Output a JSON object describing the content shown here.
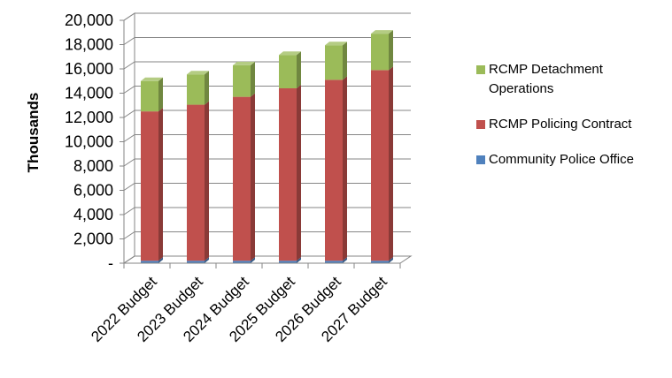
{
  "chart_data": {
    "type": "bar",
    "stacked": true,
    "three_d": true,
    "categories": [
      "2022 Budget",
      "2023 Budget",
      "2024 Budget",
      "2025 Budget",
      "2026 Budget",
      "2027 Budget"
    ],
    "series": [
      {
        "name": "Community Police Office",
        "color": "#4f81bd",
        "values": [
          200,
          200,
          200,
          200,
          200,
          200
        ]
      },
      {
        "name": "RCMP Policing Contract",
        "color": "#c0504d",
        "values": [
          12300,
          12850,
          13500,
          14200,
          14900,
          15700
        ]
      },
      {
        "name": "RCMP Detachment Operations",
        "color": "#9bbb59",
        "values": [
          2500,
          2500,
          2600,
          2750,
          2850,
          3000
        ]
      }
    ],
    "ylabel": "Thousands",
    "ylim": [
      0,
      20000
    ],
    "yticks": [
      "-",
      "2,000",
      "4,000",
      "6,000",
      "8,000",
      "10,000",
      "12,000",
      "14,000",
      "16,000",
      "18,000",
      "20,000"
    ],
    "grid": true,
    "legend_position": "right"
  }
}
